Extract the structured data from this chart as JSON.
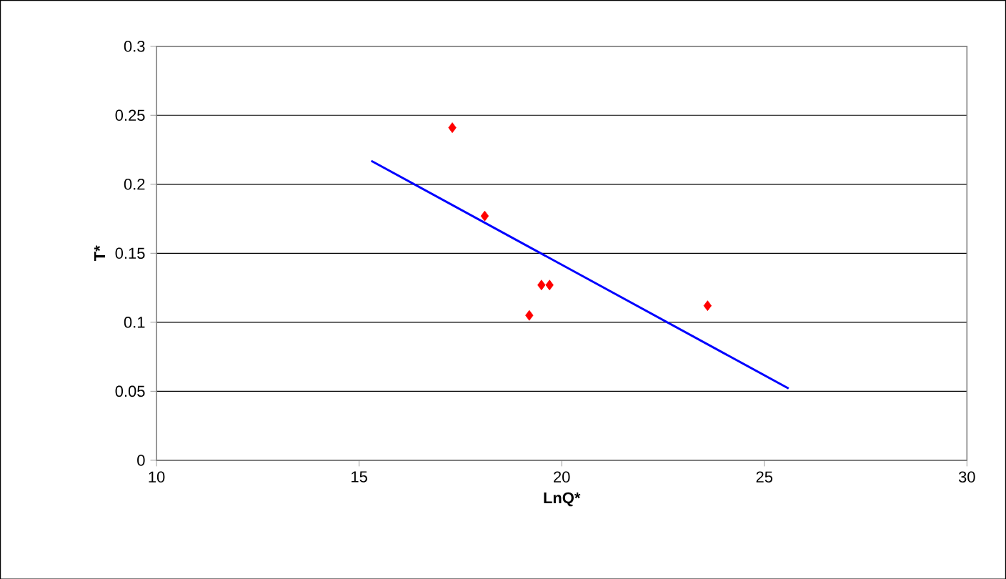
{
  "chart_data": {
    "type": "scatter",
    "xlabel": "LnQ*",
    "ylabel": "T*",
    "xlim": [
      10,
      30
    ],
    "xticks": [
      10,
      15,
      20,
      25,
      30
    ],
    "ylim": [
      0,
      0.3
    ],
    "yticks": [
      0,
      0.05,
      0.1,
      0.15,
      0.2,
      0.25,
      0.3
    ],
    "grid": "y",
    "series": [
      {
        "marker": "diamond",
        "color": "#ff0000",
        "x": [
          17.3,
          18.1,
          19.2,
          19.5,
          19.7,
          23.6
        ],
        "values": [
          0.241,
          0.177,
          0.105,
          0.127,
          0.127,
          0.112
        ]
      },
      {
        "type": "line",
        "marker": "none",
        "color": "#0000ff",
        "x": [
          15.3,
          25.6
        ],
        "values": [
          0.217,
          0.052
        ]
      }
    ]
  }
}
